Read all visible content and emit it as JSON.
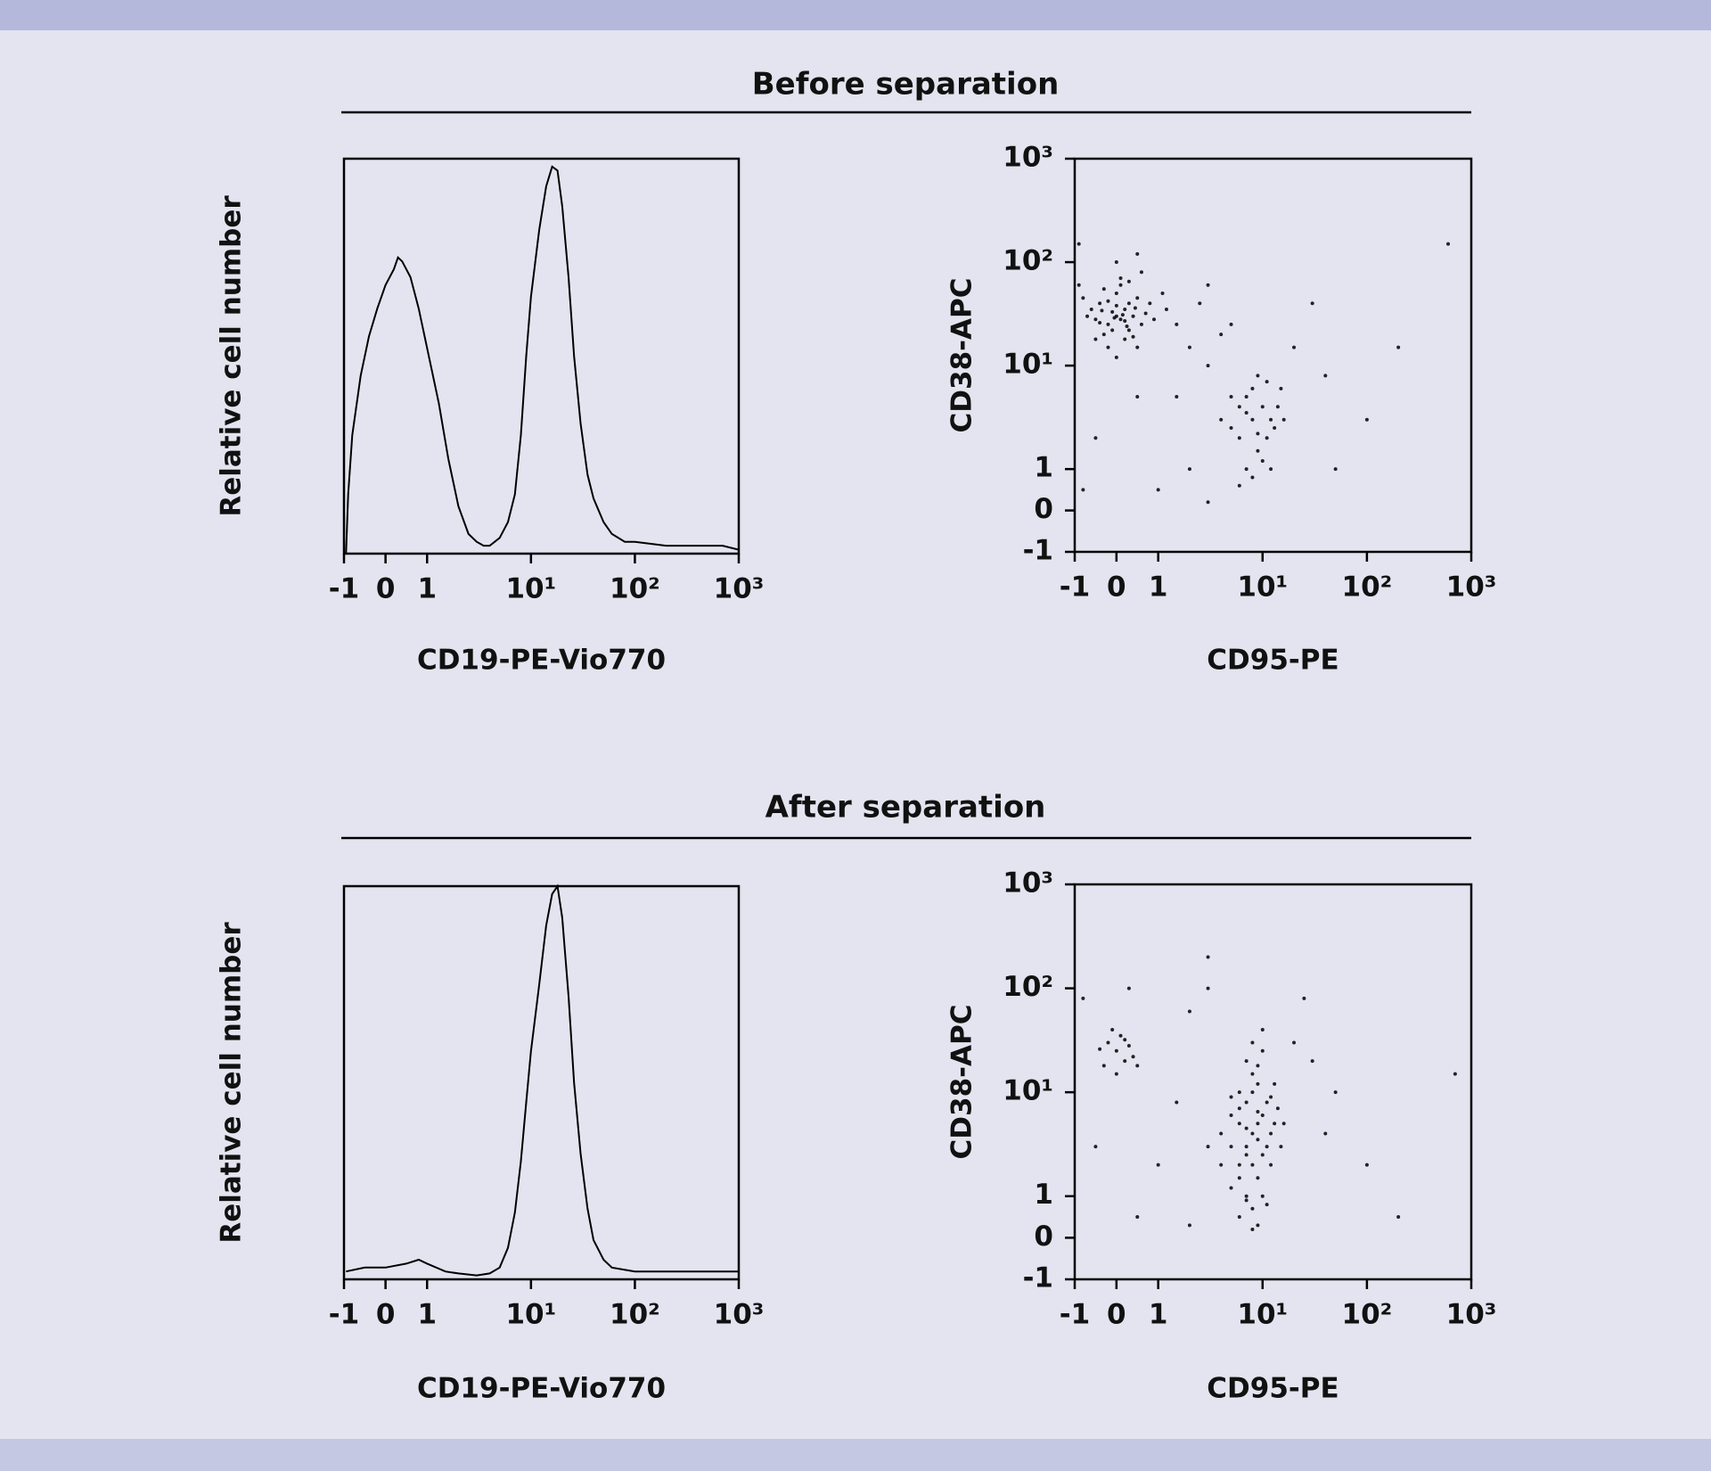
{
  "sections": [
    {
      "title": "Before separation"
    },
    {
      "title": "After separation"
    }
  ],
  "chart_data": [
    {
      "type": "line",
      "xlabel": "CD19-PE-Vio770",
      "ylabel": "Relative cell number",
      "color": "#000000",
      "xscale": "biexponential",
      "xlim": [
        -1,
        1000
      ],
      "ylim": [
        0,
        100
      ],
      "xticks": [
        -1,
        0,
        1,
        {
          "value": 10,
          "label": "10¹"
        },
        {
          "value": 100,
          "label": "10²"
        },
        {
          "value": 1000,
          "label": "10³"
        }
      ],
      "x": [
        -0.95,
        -0.9,
        -0.8,
        -0.6,
        -0.4,
        -0.2,
        0,
        0.2,
        0.3,
        0.4,
        0.6,
        0.8,
        1,
        1.3,
        1.6,
        2,
        2.5,
        3,
        3.5,
        4,
        5,
        6,
        7,
        8,
        9,
        10,
        12,
        14,
        16,
        18,
        20,
        23,
        26,
        30,
        35,
        40,
        50,
        60,
        80,
        100,
        200,
        400,
        700,
        1000
      ],
      "values": [
        0,
        15,
        30,
        45,
        55,
        62,
        68,
        72,
        75,
        74,
        70,
        62,
        52,
        38,
        24,
        12,
        5,
        3,
        2,
        2,
        4,
        8,
        15,
        30,
        50,
        65,
        82,
        93,
        98,
        97,
        88,
        70,
        50,
        33,
        20,
        14,
        8,
        5,
        3,
        3,
        2,
        2,
        2,
        1
      ]
    },
    {
      "type": "scatter",
      "xlabel": "CD95-PE",
      "ylabel": "CD38-APC",
      "color": "#000000",
      "xscale": "biexponential",
      "yscale": "biexponential",
      "xlim": [
        -1,
        1000
      ],
      "ylim": [
        -1,
        1000
      ],
      "xticks": [
        -1,
        0,
        1,
        {
          "value": 10,
          "label": "10¹"
        },
        {
          "value": 100,
          "label": "10²"
        },
        {
          "value": 1000,
          "label": "10³"
        }
      ],
      "yticks": [
        -1,
        0,
        1,
        {
          "value": 10,
          "label": "10¹"
        },
        {
          "value": 100,
          "label": "10²"
        },
        {
          "value": 1000,
          "label": "10³"
        }
      ],
      "x": [
        0,
        -0.2,
        0.2,
        -0.4,
        0.3,
        0.1,
        -0.1,
        0.4,
        -0.3,
        0.5,
        -0.5,
        0,
        0.2,
        -0.6,
        0.6,
        0.1,
        -0.2,
        0.3,
        -0.7,
        0.7,
        -0.1,
        0.2,
        0,
        -0.4,
        0.4,
        0.8,
        -0.8,
        0.1,
        -0.3,
        0.5,
        0,
        0.9,
        -0.5,
        0.3,
        -0.2,
        0.15,
        -0.05,
        0.25,
        -0.35,
        0.45,
        1.2,
        1.5,
        -0.9,
        0.6,
        1.1,
        8,
        6,
        10,
        7,
        9,
        12,
        5,
        8,
        11,
        7,
        14,
        6,
        9,
        10,
        13,
        8,
        5,
        15,
        7,
        9,
        12,
        6,
        11,
        16,
        4,
        2,
        3,
        4,
        2.5,
        5,
        1.5,
        3,
        20,
        30,
        2,
        -0.5,
        0.5,
        1,
        40,
        100,
        200,
        50,
        3,
        -0.8,
        600,
        -0.9,
        0,
        0.5
      ],
      "values": [
        30,
        25,
        35,
        40,
        22,
        28,
        33,
        30,
        20,
        45,
        28,
        50,
        18,
        35,
        25,
        60,
        15,
        40,
        30,
        32,
        22,
        27,
        38,
        26,
        19,
        40,
        45,
        70,
        55,
        15,
        12,
        28,
        18,
        65,
        42,
        31,
        29,
        24,
        34,
        36,
        35,
        25,
        60,
        80,
        50,
        3,
        2,
        4,
        5,
        1.5,
        3,
        2.5,
        6,
        2,
        1,
        4,
        4,
        8,
        1.2,
        2.5,
        0.8,
        5,
        6,
        3.5,
        2.2,
        1,
        0.6,
        7,
        3,
        3,
        15,
        10,
        20,
        40,
        25,
        5,
        60,
        15,
        40,
        1,
        2,
        5,
        0.5,
        8,
        3,
        15,
        1,
        0.2,
        0.5,
        150,
        150,
        100,
        120
      ]
    },
    {
      "type": "line",
      "xlabel": "CD19-PE-Vio770",
      "ylabel": "Relative cell number",
      "color": "#000000",
      "xscale": "biexponential",
      "xlim": [
        -1,
        1000
      ],
      "ylim": [
        0,
        100
      ],
      "xticks": [
        -1,
        0,
        1,
        {
          "value": 10,
          "label": "10¹"
        },
        {
          "value": 100,
          "label": "10²"
        },
        {
          "value": 1000,
          "label": "10³"
        }
      ],
      "x": [
        -0.95,
        -0.5,
        0,
        0.5,
        0.8,
        1,
        1.5,
        2,
        3,
        4,
        5,
        6,
        7,
        8,
        9,
        10,
        12,
        14,
        16,
        18,
        20,
        23,
        26,
        30,
        35,
        40,
        50,
        60,
        100,
        300,
        1000
      ],
      "values": [
        2,
        3,
        3,
        4,
        5,
        4,
        2,
        1.5,
        1,
        1.5,
        3,
        8,
        17,
        30,
        45,
        58,
        75,
        90,
        98,
        100,
        92,
        72,
        50,
        32,
        18,
        10,
        5,
        3,
        2,
        2,
        2
      ]
    },
    {
      "type": "scatter",
      "xlabel": "CD95-PE",
      "ylabel": "CD38-APC",
      "color": "#000000",
      "xscale": "biexponential",
      "yscale": "biexponential",
      "xlim": [
        -1,
        1000
      ],
      "ylim": [
        -1,
        1000
      ],
      "xticks": [
        -1,
        0,
        1,
        {
          "value": 10,
          "label": "10¹"
        },
        {
          "value": 100,
          "label": "10²"
        },
        {
          "value": 1000,
          "label": "10³"
        }
      ],
      "yticks": [
        -1,
        0,
        1,
        {
          "value": 10,
          "label": "10¹"
        },
        {
          "value": 100,
          "label": "10²"
        },
        {
          "value": 1000,
          "label": "10³"
        }
      ],
      "x": [
        0,
        -0.2,
        0.2,
        0.1,
        -0.3,
        0.3,
        0,
        -0.1,
        0.4,
        -0.4,
        0.2,
        0.5,
        8,
        7,
        9,
        6,
        10,
        8,
        7,
        9,
        11,
        6,
        8,
        10,
        5,
        12,
        7,
        9,
        8,
        6,
        11,
        7,
        10,
        5,
        13,
        9,
        8,
        6,
        12,
        7,
        14,
        4,
        9,
        10,
        5,
        8,
        11,
        6,
        15,
        7,
        9,
        4,
        13,
        3,
        8,
        10,
        6,
        16,
        7,
        12,
        9,
        5,
        2,
        3,
        20,
        30,
        1.5,
        1,
        0.5,
        -0.5,
        2,
        40,
        100,
        200,
        25,
        50,
        3,
        -0.8,
        0.3,
        700
      ],
      "values": [
        25,
        30,
        20,
        35,
        18,
        28,
        15,
        40,
        22,
        26,
        32,
        18,
        4,
        3,
        5,
        2,
        6,
        2,
        8,
        1.5,
        3,
        5,
        10,
        2.5,
        3,
        4,
        1,
        12,
        0.7,
        1.5,
        8,
        20,
        1,
        6,
        5,
        3.5,
        15,
        0.5,
        2,
        4.5,
        7,
        4,
        0.3,
        25,
        1.2,
        30,
        0.8,
        10,
        3,
        2.5,
        6.5,
        2,
        12,
        3,
        0.2,
        40,
        7,
        5,
        0.9,
        9,
        18,
        9,
        60,
        100,
        30,
        20,
        8,
        2,
        0.5,
        3,
        0.3,
        4,
        2,
        0.5,
        80,
        10,
        200,
        80,
        100,
        15
      ]
    }
  ]
}
